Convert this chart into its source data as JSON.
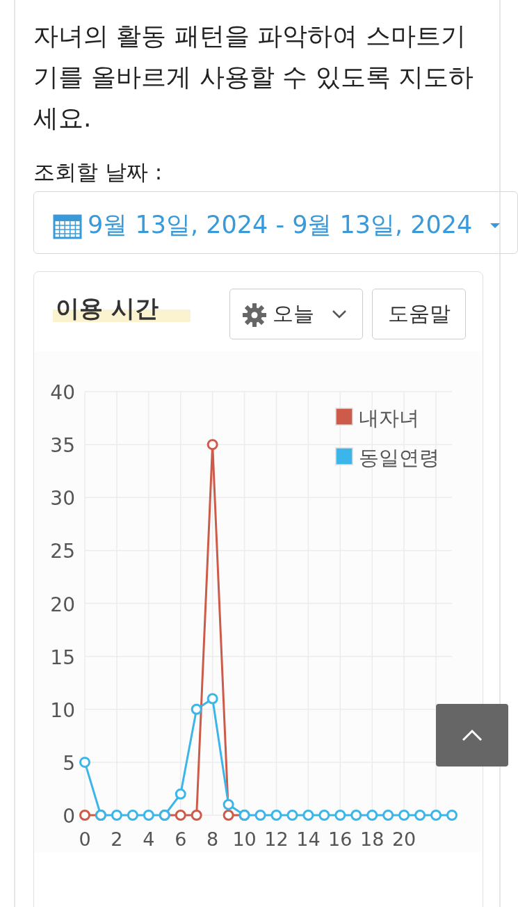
{
  "chart_data": {
    "type": "line",
    "title": "이용 시간",
    "annotations": [
      "자녀의 활동 패턴을 파악하여 스마트기기를 올바르게 사용할 수 있도록 지도하세요.",
      "조회할 날짜 :",
      "9월 13일, 2024 - 9월 13일, 2024",
      "오늘",
      "도움말"
    ],
    "x": [
      0,
      1,
      2,
      3,
      4,
      5,
      6,
      7,
      8,
      9,
      10,
      11,
      12,
      13,
      14,
      15,
      16,
      17,
      18,
      19,
      20,
      21,
      22,
      23
    ],
    "series": [
      {
        "name": "내자녀",
        "color": "#cc5b4a",
        "values": [
          0,
          0,
          null,
          null,
          null,
          0,
          0,
          0,
          35,
          0,
          0,
          null,
          null,
          null,
          null,
          null,
          null,
          null,
          null,
          null,
          null,
          null,
          null,
          null
        ]
      },
      {
        "name": "동일연령",
        "color": "#3cb5e8",
        "values": [
          5,
          0,
          0,
          0,
          0,
          0,
          2,
          10,
          11,
          1,
          0,
          0,
          0,
          0,
          0,
          0,
          0,
          0,
          0,
          0,
          0,
          0,
          0,
          0
        ]
      }
    ],
    "xlim": [
      0,
      23
    ],
    "xticks": [
      0,
      2,
      4,
      6,
      8,
      10,
      12,
      14,
      16,
      18,
      20,
      {
        "value": 22,
        "label": null
      }
    ],
    "ylim": [
      0,
      40
    ],
    "yticks": [
      0,
      5,
      10,
      15,
      20,
      25,
      30,
      35,
      40
    ],
    "grid": true,
    "legend": "top right",
    "marker": "circle",
    "line_style": "solid"
  }
}
